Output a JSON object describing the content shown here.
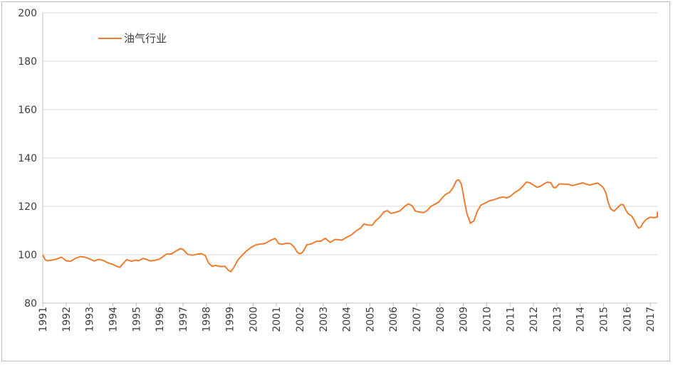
{
  "chart_data": {
    "type": "line",
    "ylim": [
      80,
      200
    ],
    "yticks": [
      80,
      100,
      120,
      140,
      160,
      180,
      200
    ],
    "xlim": [
      1991,
      2017.3
    ],
    "xticks": [
      1991,
      1992,
      1993,
      1994,
      1995,
      1996,
      1997,
      1998,
      1999,
      2000,
      2001,
      2002,
      2003,
      2004,
      2005,
      2006,
      2007,
      2008,
      2009,
      2010,
      2011,
      2012,
      2013,
      2014,
      2015,
      2016,
      2017
    ],
    "grid": true,
    "legend": "top-left",
    "colors": {
      "series": "#ed7d31",
      "grid": "#d9d9d9",
      "axis": "#bfbfbf"
    },
    "series": [
      {
        "name": "油气行业",
        "points": [
          [
            1991.0,
            100
          ],
          [
            1991.1,
            98
          ],
          [
            1991.2,
            97.5
          ],
          [
            1991.4,
            97.8
          ],
          [
            1991.6,
            98.2
          ],
          [
            1991.8,
            99
          ],
          [
            1992.0,
            97.5
          ],
          [
            1992.2,
            97.3
          ],
          [
            1992.4,
            98.5
          ],
          [
            1992.6,
            99.2
          ],
          [
            1992.8,
            99
          ],
          [
            1993.0,
            98.3
          ],
          [
            1993.2,
            97.4
          ],
          [
            1993.4,
            98.1
          ],
          [
            1993.6,
            97.6
          ],
          [
            1993.8,
            96.6
          ],
          [
            1994.0,
            96
          ],
          [
            1994.2,
            95.1
          ],
          [
            1994.3,
            94.8
          ],
          [
            1994.5,
            97
          ],
          [
            1994.6,
            98
          ],
          [
            1994.8,
            97.3
          ],
          [
            1995.0,
            97.8
          ],
          [
            1995.1,
            97.5
          ],
          [
            1995.3,
            98.5
          ],
          [
            1995.4,
            98.2
          ],
          [
            1995.6,
            97.4
          ],
          [
            1995.8,
            97.7
          ],
          [
            1996.0,
            98.2
          ],
          [
            1996.2,
            99.6
          ],
          [
            1996.3,
            100.3
          ],
          [
            1996.5,
            100.3
          ],
          [
            1996.7,
            101.5
          ],
          [
            1996.9,
            102.6
          ],
          [
            1997.0,
            102.2
          ],
          [
            1997.2,
            100.2
          ],
          [
            1997.4,
            99.8
          ],
          [
            1997.6,
            100.2
          ],
          [
            1997.8,
            100.4
          ],
          [
            1997.95,
            99.7
          ],
          [
            1998.1,
            96.5
          ],
          [
            1998.25,
            95.2
          ],
          [
            1998.4,
            95.6
          ],
          [
            1998.6,
            95.1
          ],
          [
            1998.8,
            95.2
          ],
          [
            1998.95,
            93.5
          ],
          [
            1999.05,
            93
          ],
          [
            1999.2,
            95.1
          ],
          [
            1999.35,
            97.8
          ],
          [
            1999.5,
            99.4
          ],
          [
            1999.7,
            101.4
          ],
          [
            1999.9,
            102.9
          ],
          [
            2000.1,
            104
          ],
          [
            2000.3,
            104.4
          ],
          [
            2000.5,
            104.6
          ],
          [
            2000.65,
            105.4
          ],
          [
            2000.8,
            106.2
          ],
          [
            2000.95,
            106.7
          ],
          [
            2001.1,
            104.6
          ],
          [
            2001.25,
            104.3
          ],
          [
            2001.4,
            104.7
          ],
          [
            2001.6,
            104.6
          ],
          [
            2001.75,
            103.3
          ],
          [
            2001.9,
            100.9
          ],
          [
            2002.0,
            100.4
          ],
          [
            2002.1,
            100.8
          ],
          [
            2002.2,
            102.2
          ],
          [
            2002.3,
            104.1
          ],
          [
            2002.5,
            104.5
          ],
          [
            2002.7,
            105.5
          ],
          [
            2002.9,
            105.6
          ],
          [
            2003.1,
            106.8
          ],
          [
            2003.3,
            105.1
          ],
          [
            2003.5,
            106.3
          ],
          [
            2003.7,
            106.2
          ],
          [
            2003.8,
            106
          ],
          [
            2004.0,
            107.2
          ],
          [
            2004.2,
            108.1
          ],
          [
            2004.4,
            109.8
          ],
          [
            2004.6,
            111
          ],
          [
            2004.75,
            112.7
          ],
          [
            2004.9,
            112.3
          ],
          [
            2005.1,
            112.2
          ],
          [
            2005.25,
            114.1
          ],
          [
            2005.4,
            115.3
          ],
          [
            2005.6,
            117.7
          ],
          [
            2005.75,
            118.2
          ],
          [
            2005.9,
            117.1
          ],
          [
            2006.1,
            117.5
          ],
          [
            2006.3,
            118.2
          ],
          [
            2006.5,
            120.1
          ],
          [
            2006.65,
            121
          ],
          [
            2006.8,
            120.3
          ],
          [
            2006.95,
            118
          ],
          [
            2007.15,
            117.6
          ],
          [
            2007.3,
            117.4
          ],
          [
            2007.45,
            118.3
          ],
          [
            2007.6,
            119.9
          ],
          [
            2007.8,
            121
          ],
          [
            2007.95,
            121.8
          ],
          [
            2008.1,
            123.6
          ],
          [
            2008.25,
            125
          ],
          [
            2008.4,
            125.7
          ],
          [
            2008.55,
            127.6
          ],
          [
            2008.7,
            130.6
          ],
          [
            2008.8,
            131
          ],
          [
            2008.9,
            129.5
          ],
          [
            2008.95,
            127.5
          ],
          [
            2009.05,
            122
          ],
          [
            2009.15,
            117
          ],
          [
            2009.3,
            113
          ],
          [
            2009.45,
            114
          ],
          [
            2009.6,
            118
          ],
          [
            2009.75,
            120.5
          ],
          [
            2009.9,
            121.2
          ],
          [
            2010.1,
            122.2
          ],
          [
            2010.3,
            122.7
          ],
          [
            2010.5,
            123.4
          ],
          [
            2010.7,
            123.9
          ],
          [
            2010.85,
            123.5
          ],
          [
            2011.0,
            124.1
          ],
          [
            2011.2,
            125.7
          ],
          [
            2011.4,
            126.9
          ],
          [
            2011.55,
            128.4
          ],
          [
            2011.7,
            130
          ],
          [
            2011.85,
            129.7
          ],
          [
            2012.0,
            128.8
          ],
          [
            2012.15,
            127.9
          ],
          [
            2012.3,
            128.3
          ],
          [
            2012.45,
            129.3
          ],
          [
            2012.6,
            130
          ],
          [
            2012.75,
            129.7
          ],
          [
            2012.85,
            127.8
          ],
          [
            2012.95,
            127.7
          ],
          [
            2013.1,
            129.3
          ],
          [
            2013.3,
            129.2
          ],
          [
            2013.5,
            129.1
          ],
          [
            2013.65,
            128.6
          ],
          [
            2013.8,
            128.9
          ],
          [
            2013.95,
            129.3
          ],
          [
            2014.1,
            129.7
          ],
          [
            2014.25,
            129.2
          ],
          [
            2014.4,
            128.8
          ],
          [
            2014.6,
            129.3
          ],
          [
            2014.75,
            129.6
          ],
          [
            2014.9,
            128.5
          ],
          [
            2015.0,
            127.5
          ],
          [
            2015.1,
            125.5
          ],
          [
            2015.2,
            121.5
          ],
          [
            2015.3,
            119
          ],
          [
            2015.45,
            118
          ],
          [
            2015.6,
            119.5
          ],
          [
            2015.75,
            120.8
          ],
          [
            2015.85,
            120.6
          ],
          [
            2015.95,
            118.5
          ],
          [
            2016.05,
            117
          ],
          [
            2016.2,
            116
          ],
          [
            2016.3,
            114.5
          ],
          [
            2016.4,
            112.3
          ],
          [
            2016.5,
            111
          ],
          [
            2016.6,
            111.5
          ],
          [
            2016.7,
            113.3
          ],
          [
            2016.85,
            114.8
          ],
          [
            2017.0,
            115.5
          ],
          [
            2017.15,
            115.3
          ],
          [
            2017.3,
            115.6
          ],
          [
            2017.5,
            115.8
          ],
          [
            2017.7,
            117
          ],
          [
            2017.85,
            117.5
          ],
          [
            2018.05,
            117.4
          ]
        ]
      }
    ]
  }
}
